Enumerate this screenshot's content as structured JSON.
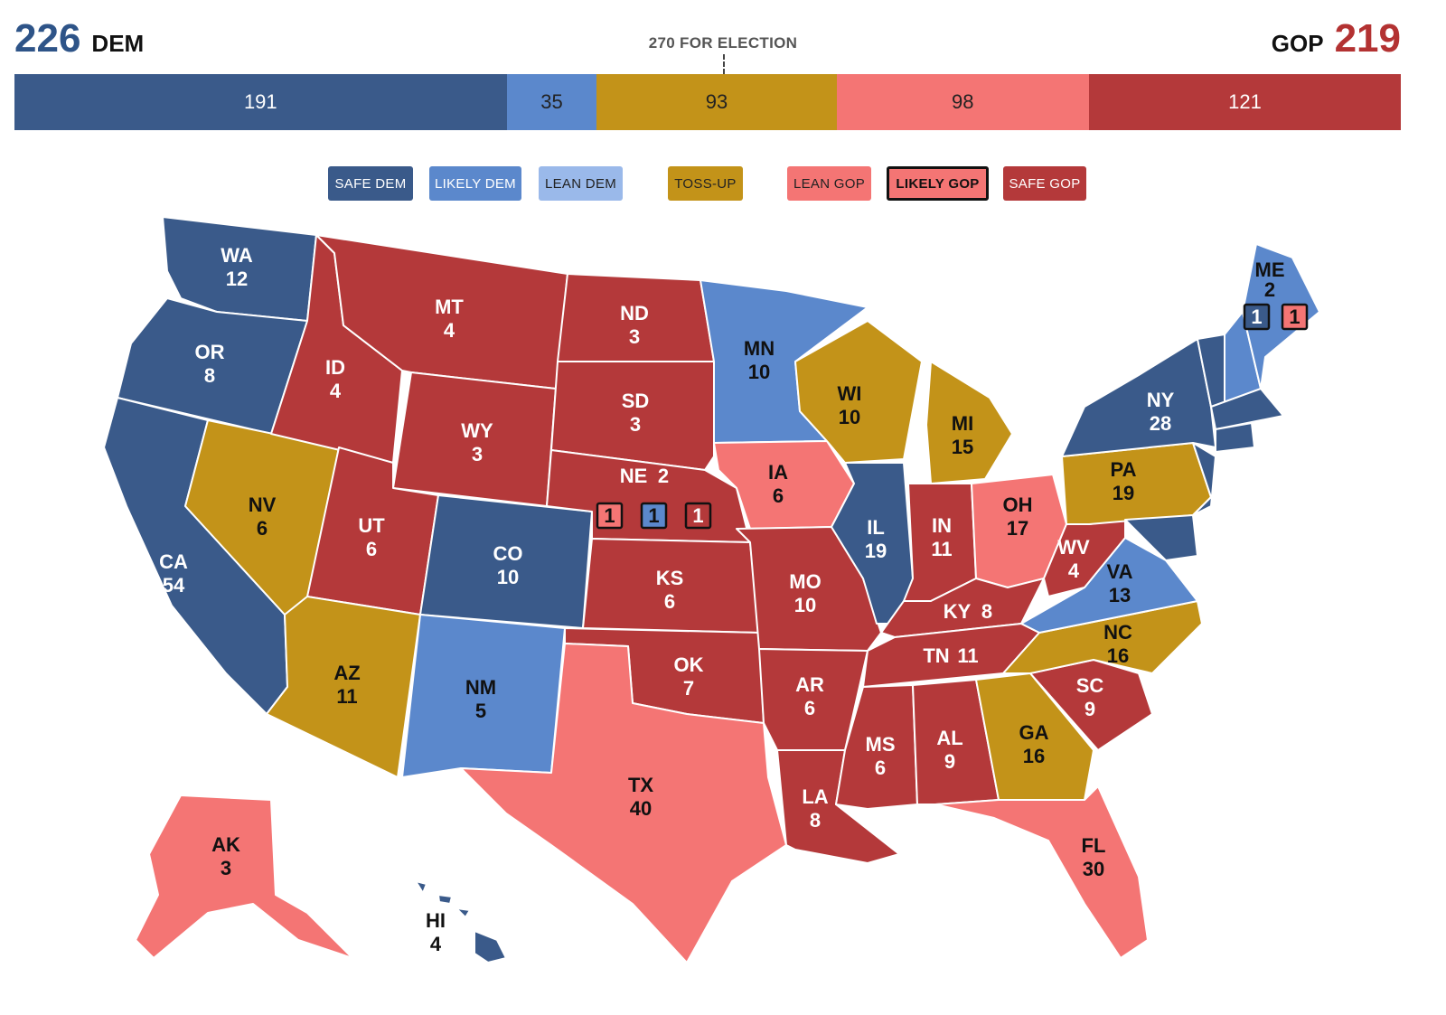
{
  "header": {
    "dem_total": "226",
    "dem_label": "DEM",
    "gop_total": "219",
    "gop_label": "GOP",
    "threshold_label": "270 FOR ELECTION"
  },
  "colors": {
    "safe_dem": "#3a5a8a",
    "likely_dem": "#5b88cc",
    "lean_dem": "#9ab9ea",
    "toss_up": "#c39319",
    "lean_gop": "#f47574",
    "likely_gop": "#f47574",
    "safe_gop": "#b4393a"
  },
  "bar": [
    {
      "category": "safe_dem",
      "value": 191,
      "label": "191"
    },
    {
      "category": "likely_dem",
      "value": 35,
      "label": "35"
    },
    {
      "category": "toss_up",
      "value": 93,
      "label": "93"
    },
    {
      "category": "lean_gop",
      "value": 98,
      "label": "98"
    },
    {
      "category": "safe_gop",
      "value": 121,
      "label": "121"
    }
  ],
  "legend": [
    {
      "key": "safe_dem",
      "label": "SAFE DEM",
      "selected": false
    },
    {
      "key": "likely_dem",
      "label": "LIKELY DEM",
      "selected": false
    },
    {
      "key": "lean_dem",
      "label": "LEAN DEM",
      "selected": false
    },
    {
      "key": "toss_up",
      "label": "TOSS-UP",
      "selected": false
    },
    {
      "key": "lean_gop",
      "label": "LEAN GOP",
      "selected": false
    },
    {
      "key": "likely_gop",
      "label": "LIKELY GOP",
      "selected": true
    },
    {
      "key": "safe_gop",
      "label": "SAFE GOP",
      "selected": false
    }
  ],
  "states": [
    {
      "abbr": "WA",
      "votes": "12",
      "rating": "safe_dem"
    },
    {
      "abbr": "OR",
      "votes": "8",
      "rating": "safe_dem"
    },
    {
      "abbr": "CA",
      "votes": "54",
      "rating": "safe_dem"
    },
    {
      "abbr": "NV",
      "votes": "6",
      "rating": "toss_up"
    },
    {
      "abbr": "ID",
      "votes": "4",
      "rating": "safe_gop"
    },
    {
      "abbr": "MT",
      "votes": "4",
      "rating": "safe_gop"
    },
    {
      "abbr": "WY",
      "votes": "3",
      "rating": "safe_gop"
    },
    {
      "abbr": "UT",
      "votes": "6",
      "rating": "safe_gop"
    },
    {
      "abbr": "AZ",
      "votes": "11",
      "rating": "toss_up"
    },
    {
      "abbr": "CO",
      "votes": "10",
      "rating": "safe_dem"
    },
    {
      "abbr": "NM",
      "votes": "5",
      "rating": "likely_dem"
    },
    {
      "abbr": "ND",
      "votes": "3",
      "rating": "safe_gop"
    },
    {
      "abbr": "SD",
      "votes": "3",
      "rating": "safe_gop"
    },
    {
      "abbr": "NE",
      "votes": "2",
      "rating": "safe_gop"
    },
    {
      "abbr": "KS",
      "votes": "6",
      "rating": "safe_gop"
    },
    {
      "abbr": "OK",
      "votes": "7",
      "rating": "safe_gop"
    },
    {
      "abbr": "TX",
      "votes": "40",
      "rating": "lean_gop"
    },
    {
      "abbr": "MN",
      "votes": "10",
      "rating": "likely_dem"
    },
    {
      "abbr": "IA",
      "votes": "6",
      "rating": "lean_gop"
    },
    {
      "abbr": "MO",
      "votes": "10",
      "rating": "safe_gop"
    },
    {
      "abbr": "AR",
      "votes": "6",
      "rating": "safe_gop"
    },
    {
      "abbr": "LA",
      "votes": "8",
      "rating": "safe_gop"
    },
    {
      "abbr": "WI",
      "votes": "10",
      "rating": "toss_up"
    },
    {
      "abbr": "IL",
      "votes": "19",
      "rating": "safe_dem"
    },
    {
      "abbr": "MI",
      "votes": "15",
      "rating": "toss_up"
    },
    {
      "abbr": "IN",
      "votes": "11",
      "rating": "safe_gop"
    },
    {
      "abbr": "OH",
      "votes": "17",
      "rating": "lean_gop"
    },
    {
      "abbr": "KY",
      "votes": "8",
      "rating": "safe_gop"
    },
    {
      "abbr": "TN",
      "votes": "11",
      "rating": "safe_gop"
    },
    {
      "abbr": "MS",
      "votes": "6",
      "rating": "safe_gop"
    },
    {
      "abbr": "AL",
      "votes": "9",
      "rating": "safe_gop"
    },
    {
      "abbr": "GA",
      "votes": "16",
      "rating": "toss_up"
    },
    {
      "abbr": "FL",
      "votes": "30",
      "rating": "lean_gop"
    },
    {
      "abbr": "SC",
      "votes": "9",
      "rating": "safe_gop"
    },
    {
      "abbr": "NC",
      "votes": "16",
      "rating": "toss_up"
    },
    {
      "abbr": "VA",
      "votes": "13",
      "rating": "likely_dem"
    },
    {
      "abbr": "WV",
      "votes": "4",
      "rating": "safe_gop"
    },
    {
      "abbr": "PA",
      "votes": "19",
      "rating": "toss_up"
    },
    {
      "abbr": "NY",
      "votes": "28",
      "rating": "safe_dem"
    },
    {
      "abbr": "ME",
      "votes": "2",
      "rating": "likely_dem"
    },
    {
      "abbr": "AK",
      "votes": "3",
      "rating": "lean_gop"
    },
    {
      "abbr": "HI",
      "votes": "4",
      "rating": "safe_dem"
    }
  ],
  "districts": [
    {
      "state": "NE",
      "label": "1",
      "rating": "lean_gop"
    },
    {
      "state": "NE",
      "label": "1",
      "rating": "likely_dem"
    },
    {
      "state": "NE",
      "label": "1",
      "rating": "safe_gop"
    },
    {
      "state": "ME",
      "label": "1",
      "rating": "safe_dem"
    },
    {
      "state": "ME",
      "label": "1",
      "rating": "lean_gop"
    }
  ]
}
